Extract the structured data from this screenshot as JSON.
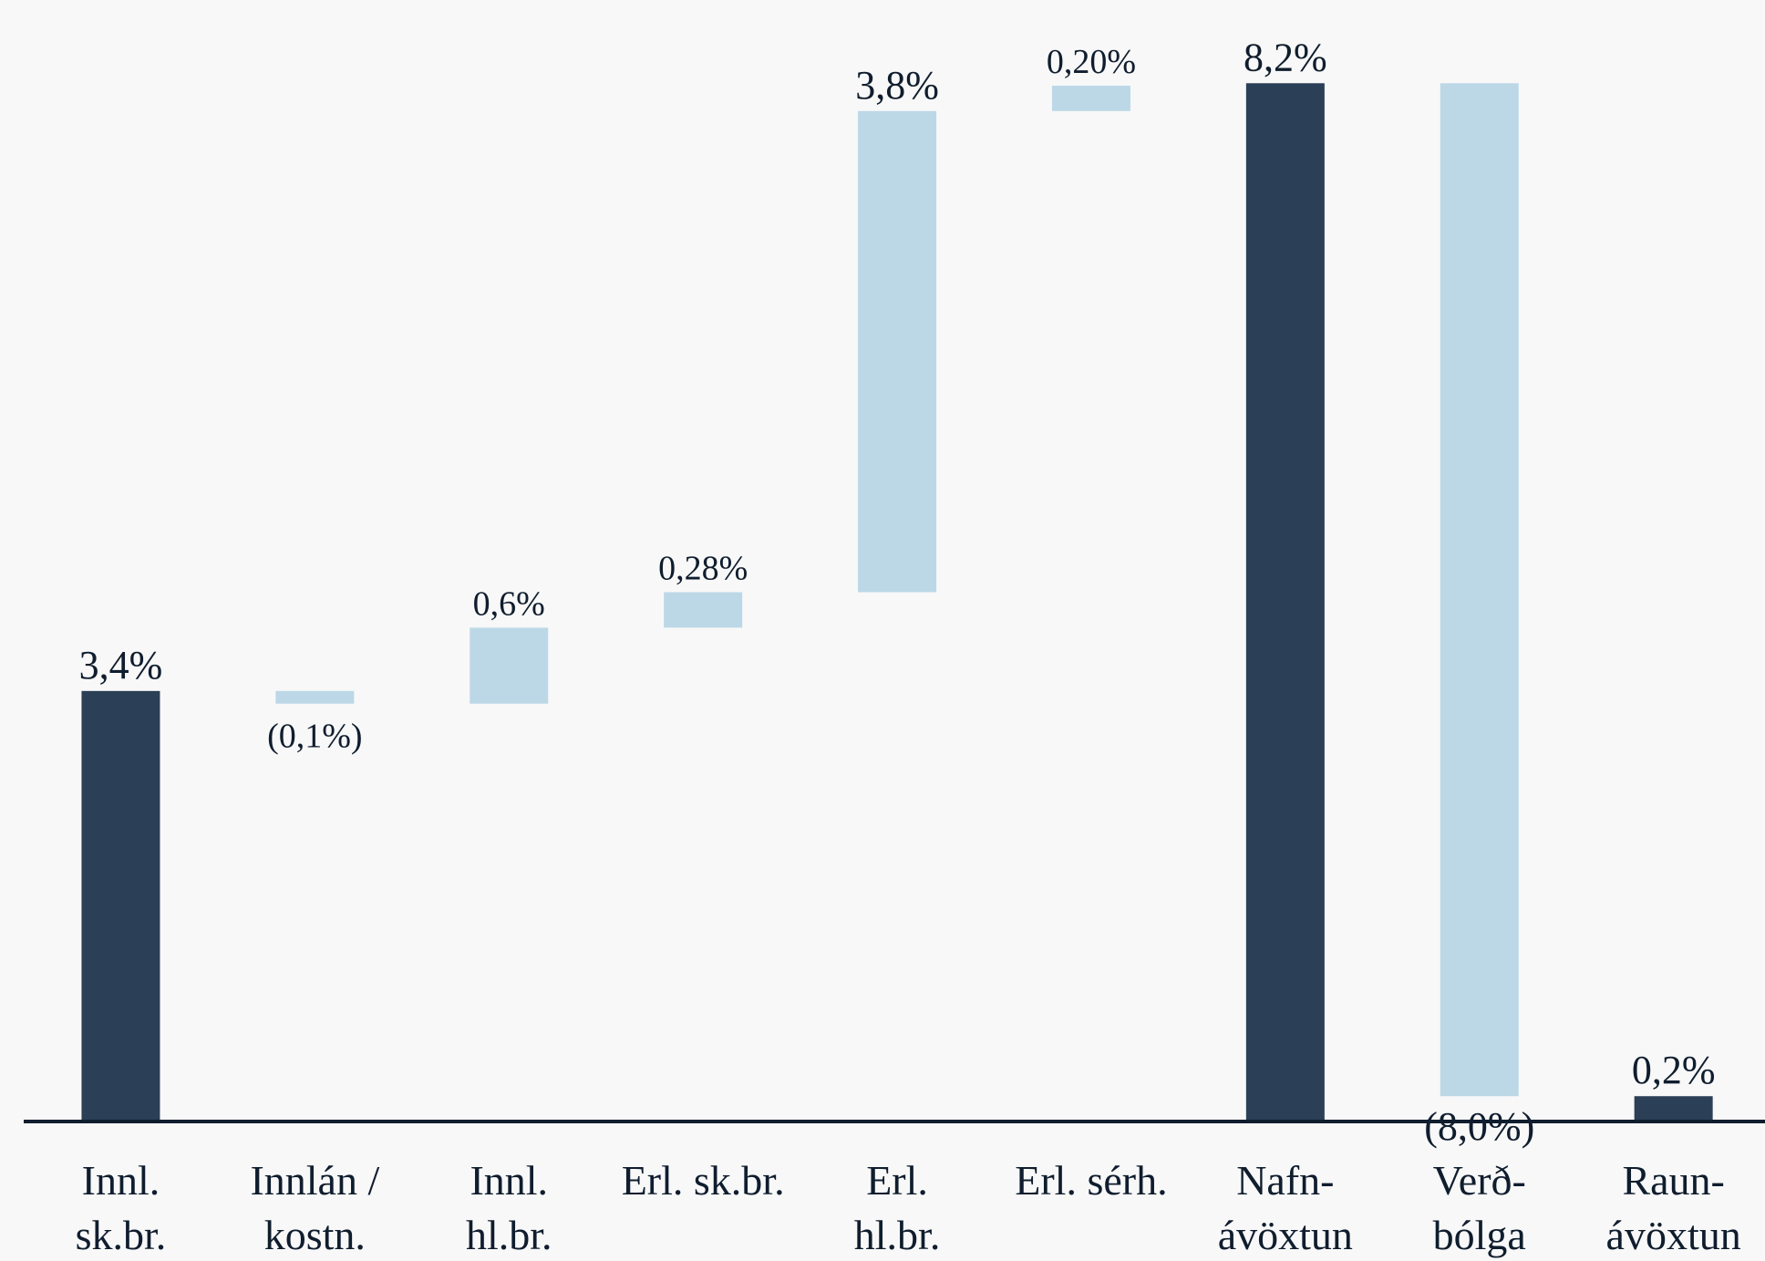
{
  "chart_data": {
    "type": "waterfall",
    "categories": [
      "Innl.\nsk.br.",
      "Innlán /\nkostn.",
      "Innl.\nhl.br.",
      "Erl. sk.br.",
      "Erl.\nhl.br.",
      "Erl. sérh.",
      "Nafn-\návöxtun",
      "Verð-\nbólga",
      "Raun-\návöxtun"
    ],
    "values": [
      3.4,
      -0.1,
      0.6,
      0.28,
      3.8,
      0.2,
      8.2,
      -8.0,
      0.2
    ],
    "value_labels": [
      "3,4%",
      "(0,1%)",
      "0,6%",
      "0,28%",
      "3,8%",
      "0,20%",
      "8,2%",
      "(8,0%)",
      "0,2%"
    ],
    "measure": [
      "absolute",
      "relative",
      "relative",
      "relative",
      "relative",
      "relative",
      "total",
      "relative",
      "total"
    ],
    "total_color": "#2b3f56",
    "relative_color": "#bcd8e7",
    "ylim": [
      0,
      8.85
    ]
  }
}
